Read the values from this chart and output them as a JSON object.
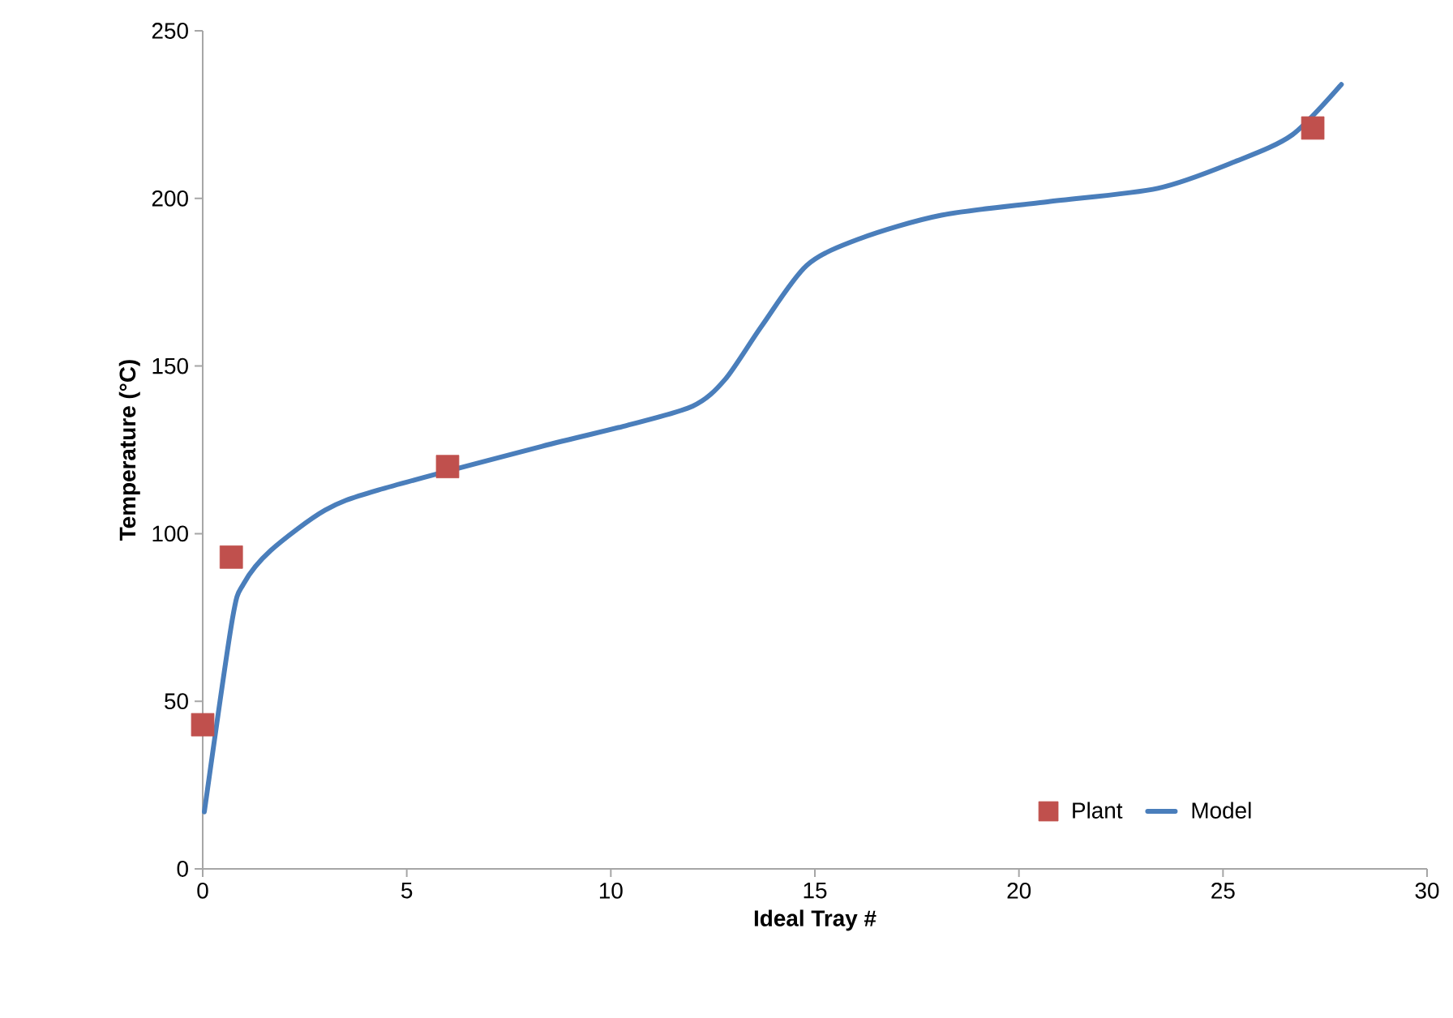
{
  "chart_data": {
    "type": "line",
    "xlabel": "Ideal Tray #",
    "ylabel": "Temperature (°C)",
    "xlim": [
      0,
      30
    ],
    "xticks": [
      0,
      5,
      10,
      15,
      20,
      25,
      30
    ],
    "ylim": [
      0,
      250
    ],
    "yticks": [
      0,
      50,
      100,
      150,
      200,
      250
    ],
    "grid": false,
    "legend": "bottom right",
    "series": [
      {
        "name": "Plant",
        "type": "scatter",
        "marker": "square",
        "color": "#c0504d",
        "x": [
          0,
          0.7,
          6.0,
          27.2
        ],
        "values": [
          43,
          93,
          120,
          221
        ]
      },
      {
        "name": "Model",
        "marker": "none",
        "line_style": "solid",
        "color": "#4a7ebb",
        "x": [
          0.04,
          0.72,
          1.0,
          1.67,
          3.0,
          4.3,
          8.3,
          10.3,
          12.0,
          12.8,
          13.7,
          14.8,
          16.1,
          18.1,
          20.7,
          23.4,
          25.3,
          26.7,
          27.9
        ],
        "values": [
          17,
          74,
          85,
          95,
          107,
          113,
          126,
          132,
          138,
          146,
          162,
          180,
          188,
          195,
          199,
          203,
          211,
          219,
          234
        ]
      }
    ]
  }
}
